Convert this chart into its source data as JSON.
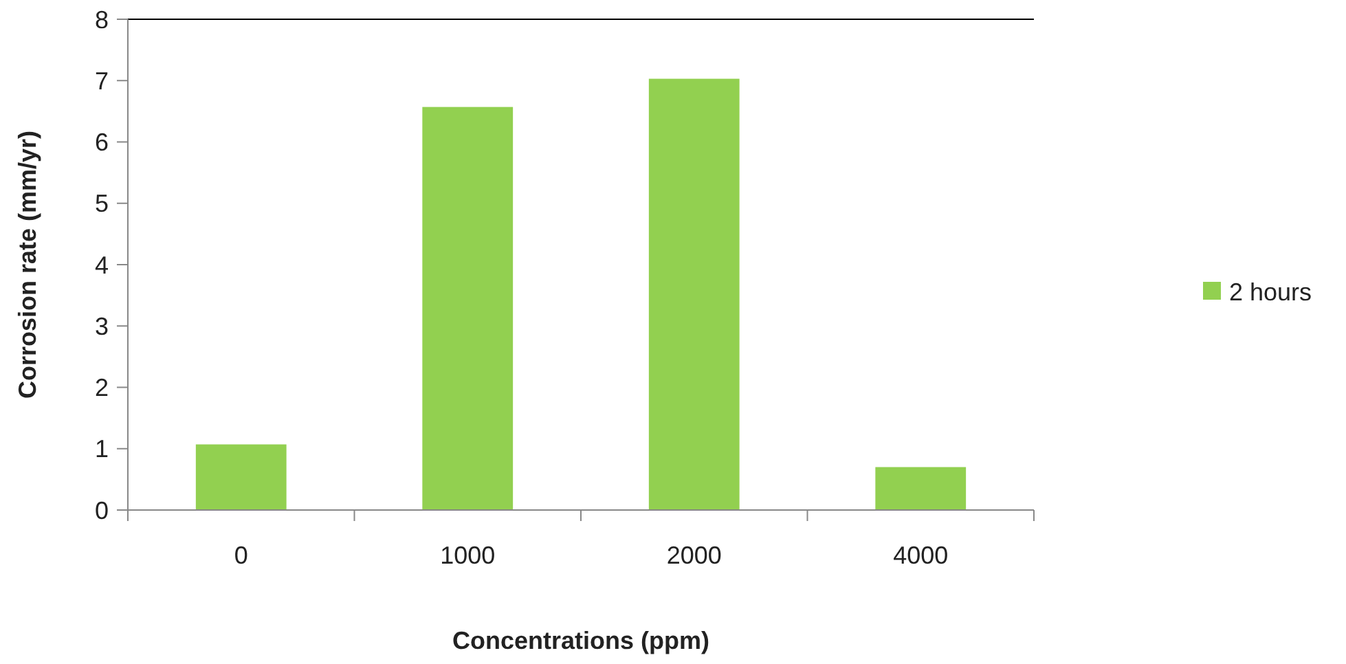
{
  "chart_data": {
    "type": "bar",
    "xlabel": "Concentrations (ppm)",
    "ylabel": "Corrosion rate (mm/yr)",
    "categories": [
      "0",
      "1000",
      "2000",
      "4000"
    ],
    "series": [
      {
        "name": "2 hours",
        "color": "#92d050",
        "values": [
          1.07,
          6.57,
          7.03,
          0.7
        ]
      }
    ],
    "ylim": [
      0,
      8
    ],
    "yticks": [
      0,
      1,
      2,
      3,
      4,
      5,
      6,
      7,
      8
    ],
    "grid": false,
    "legend": "right"
  }
}
